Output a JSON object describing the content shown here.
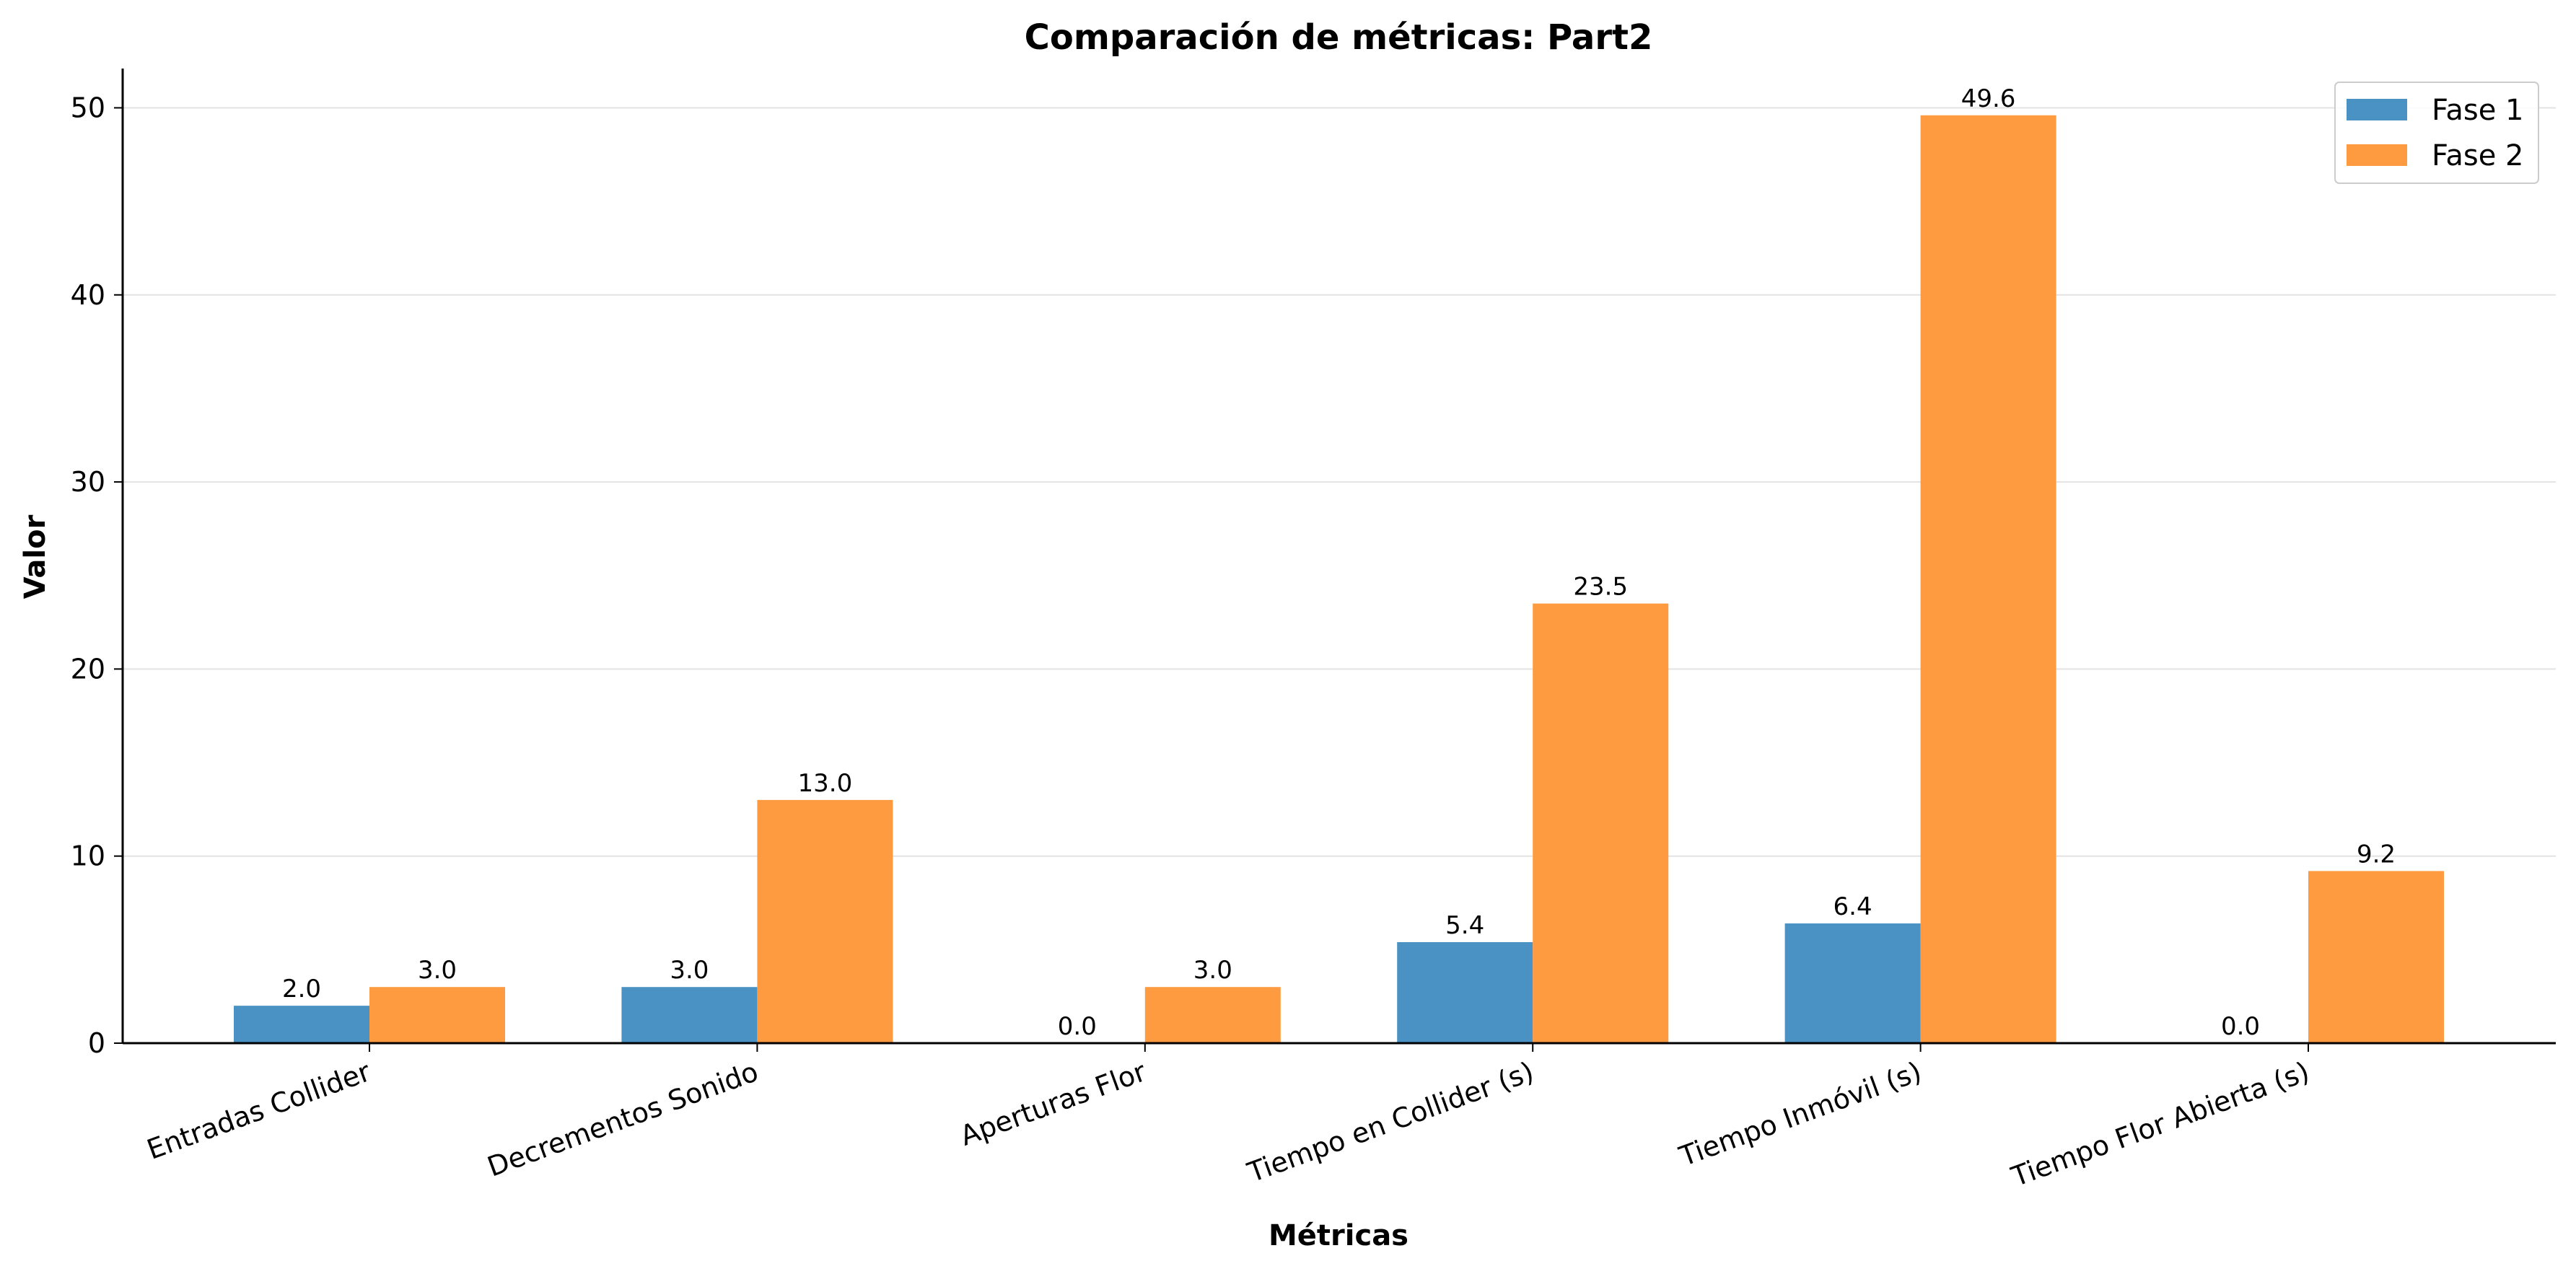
{
  "chart_data": {
    "type": "bar",
    "title": "Comparación de métricas: Part2",
    "xlabel": "Métricas",
    "ylabel": "Valor",
    "categories": [
      "Entradas Collider",
      "Decrementos Sonido",
      "Aperturas Flor",
      "Tiempo en Collider (s)",
      "Tiempo Inmóvil (s)",
      "Tiempo Flor Abierta (s)"
    ],
    "series": [
      {
        "name": "Fase 1",
        "color": "#4a92c3",
        "values": [
          2.0,
          3.0,
          0.0,
          5.4,
          6.4,
          0.0
        ],
        "labels": [
          "2.0",
          "3.0",
          "0.0",
          "5.4",
          "6.4",
          "0.0"
        ]
      },
      {
        "name": "Fase 2",
        "color": "#fe9a40",
        "values": [
          3.0,
          13.0,
          3.0,
          23.5,
          49.6,
          9.2
        ],
        "labels": [
          "3.0",
          "13.0",
          "3.0",
          "23.5",
          "49.6",
          "9.2"
        ]
      }
    ],
    "ylim": [
      0,
      52.1
    ],
    "yticks": [
      0,
      10,
      20,
      30,
      40,
      50
    ],
    "ytick_labels": [
      "0",
      "10",
      "20",
      "30",
      "40",
      "50"
    ],
    "grid": "y",
    "legend_position": "top-right"
  }
}
